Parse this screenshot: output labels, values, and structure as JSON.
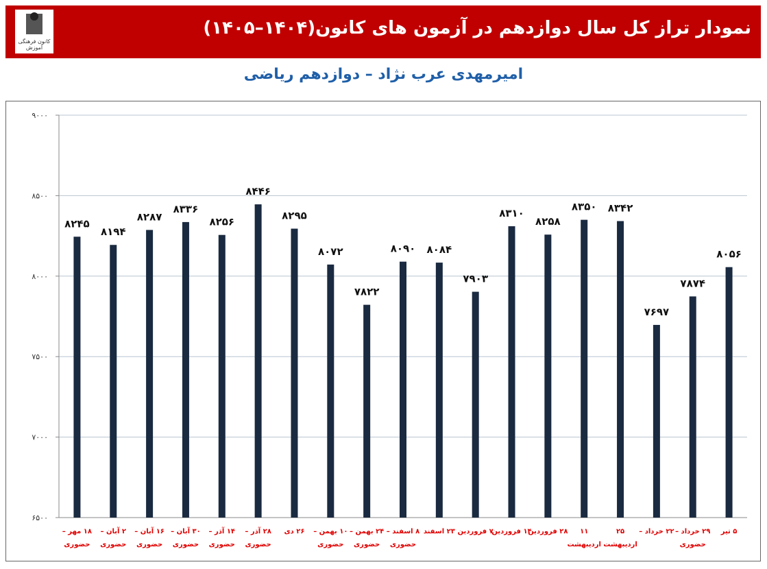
{
  "logo_text": "کانون فرهنگی آموزش",
  "chart_data": {
    "type": "bar",
    "title": "نمودار تراز کل سال دوازدهم در آزمون های کانون(۱۴۰۴–۱۴۰۵)",
    "subtitle": "امیرمهدی عرب نژاد – دوازدهم ریاضی",
    "categories": [
      "۱۸ مهر –\nحضوری",
      "۲ آبان –\nحضوری",
      "۱۶ آبان –\nحضوری",
      "۳۰ آبان –\nحضوری",
      "۱۴ آذر –\nحضوری",
      "۲۸ آذر –\nحضوری",
      "۲۶ دی",
      "۱۰ بهمن –\nحضوری",
      "۲۴ بهمن –\nحضوری",
      "۸ اسفند –\nحضوری",
      "۲۳ اسفند",
      "۷ فروردین",
      "۱۴ فروردین",
      "۲۸ فروردین",
      "۱۱ اردیبهشت",
      "۲۵\nاردیبهشت",
      "۲۲ خرداد –",
      "۲۹ خرداد –\nحضوری",
      "۵ تیر"
    ],
    "values": [
      8245,
      8194,
      8287,
      8336,
      8256,
      8446,
      8295,
      8072,
      7822,
      8090,
      8084,
      7903,
      8310,
      8258,
      8350,
      8342,
      7697,
      7874,
      8056
    ],
    "value_labels": [
      "۸۲۴۵",
      "۸۱۹۴",
      "۸۲۸۷",
      "۸۳۳۶",
      "۸۲۵۶",
      "۸۴۴۶",
      "۸۲۹۵",
      "۸۰۷۲",
      "۷۸۲۲",
      "۸۰۹۰",
      "۸۰۸۴",
      "۷۹۰۳",
      "۸۳۱۰",
      "۸۲۵۸",
      "۸۳۵۰",
      "۸۳۴۲",
      "۷۶۹۷",
      "۷۸۷۴",
      "۸۰۵۶"
    ],
    "color": "#1a2a40",
    "ylim": [
      6500,
      9000
    ],
    "yticks": [
      {
        "value": 6500,
        "label": "۶۵۰۰"
      },
      {
        "value": 7000,
        "label": "۷۰۰۰"
      },
      {
        "value": 7500,
        "label": "۷۵۰۰"
      },
      {
        "value": 8000,
        "label": "۸۰۰۰"
      },
      {
        "value": 8500,
        "label": "۸۵۰۰"
      },
      {
        "value": 9000,
        "label": "۹۰۰۰"
      }
    ],
    "grid": true
  }
}
